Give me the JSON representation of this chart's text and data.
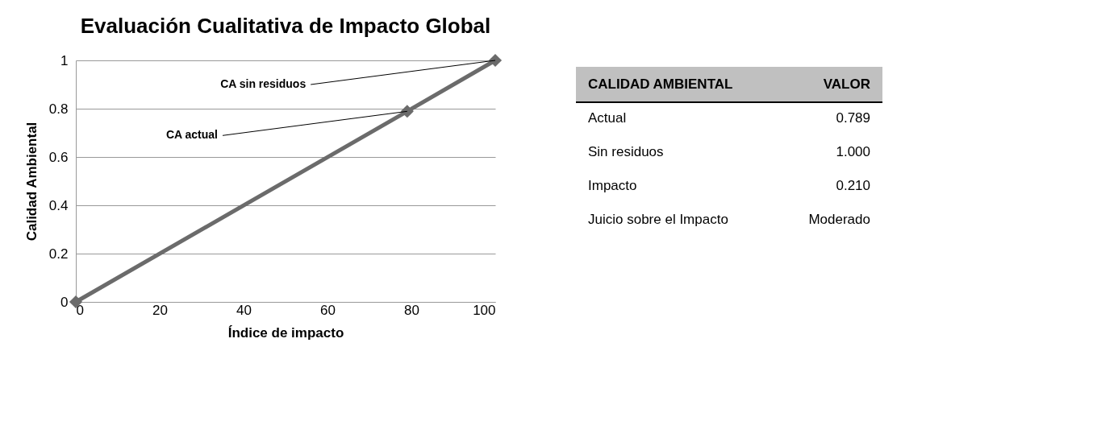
{
  "chart_data": [
    {
      "type": "line",
      "title": "Evaluación Cualitativa de Impacto Global",
      "xlabel": "Índice de impacto",
      "ylabel": "Calidad Ambiental",
      "x": [
        0,
        79,
        100
      ],
      "series": [
        {
          "color": "#6b6b6b",
          "values": [
            0,
            0.789,
            1
          ]
        }
      ],
      "xlim": [
        0,
        100
      ],
      "xticks": [
        0,
        20,
        40,
        60,
        80,
        100
      ],
      "ylim": [
        0,
        1
      ],
      "yticks": [
        0,
        0.2,
        0.4,
        0.6,
        0.8,
        1
      ],
      "grid": "y",
      "marker": "diamond",
      "line_style": "solid",
      "annotations": [
        {
          "text": "CA sin residuos",
          "x": 100,
          "y": 1
        },
        {
          "text": "CA actual",
          "x": 79,
          "y": 0.789
        }
      ]
    },
    {
      "type": "other",
      "annotations": [
        "CALIDAD AMBIENTAL",
        "VALOR",
        "Actual",
        "0.789",
        "Sin residuos",
        "1.000",
        "Impacto",
        "0.210",
        "Juicio sobre el Impacto",
        "Moderado"
      ]
    }
  ]
}
